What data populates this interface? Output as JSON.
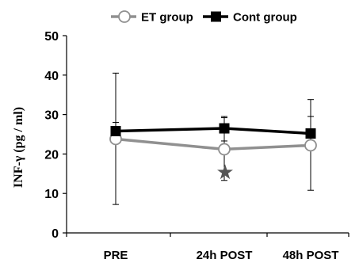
{
  "chart_data": {
    "type": "line",
    "title": "",
    "xlabel": "",
    "ylabel": "INF-γ (pg / ml)",
    "categories": [
      "PRE",
      "24h POST",
      "48h POST"
    ],
    "ylim": [
      0,
      50
    ],
    "yticks": [
      "0",
      "10",
      "20",
      "30",
      "40",
      "50"
    ],
    "grid": false,
    "legend_position": "top",
    "series": [
      {
        "name": "ET group",
        "marker": "open-circle",
        "color": "#909090",
        "values": [
          23.8,
          21.2,
          22.2
        ],
        "error_upper": [
          40.5,
          29.2,
          33.8
        ],
        "error_lower": [
          7.2,
          13.3,
          10.8
        ]
      },
      {
        "name": "Cont group",
        "marker": "filled-square",
        "color": "#000000",
        "values": [
          25.8,
          26.5,
          25.2
        ],
        "error_upper": [
          28.0,
          29.5,
          29.5
        ],
        "error_lower": [
          23.8,
          23.3,
          21.0
        ]
      }
    ],
    "annotations": [
      {
        "text": "★",
        "category": "24h POST",
        "y": 15.5
      }
    ]
  }
}
